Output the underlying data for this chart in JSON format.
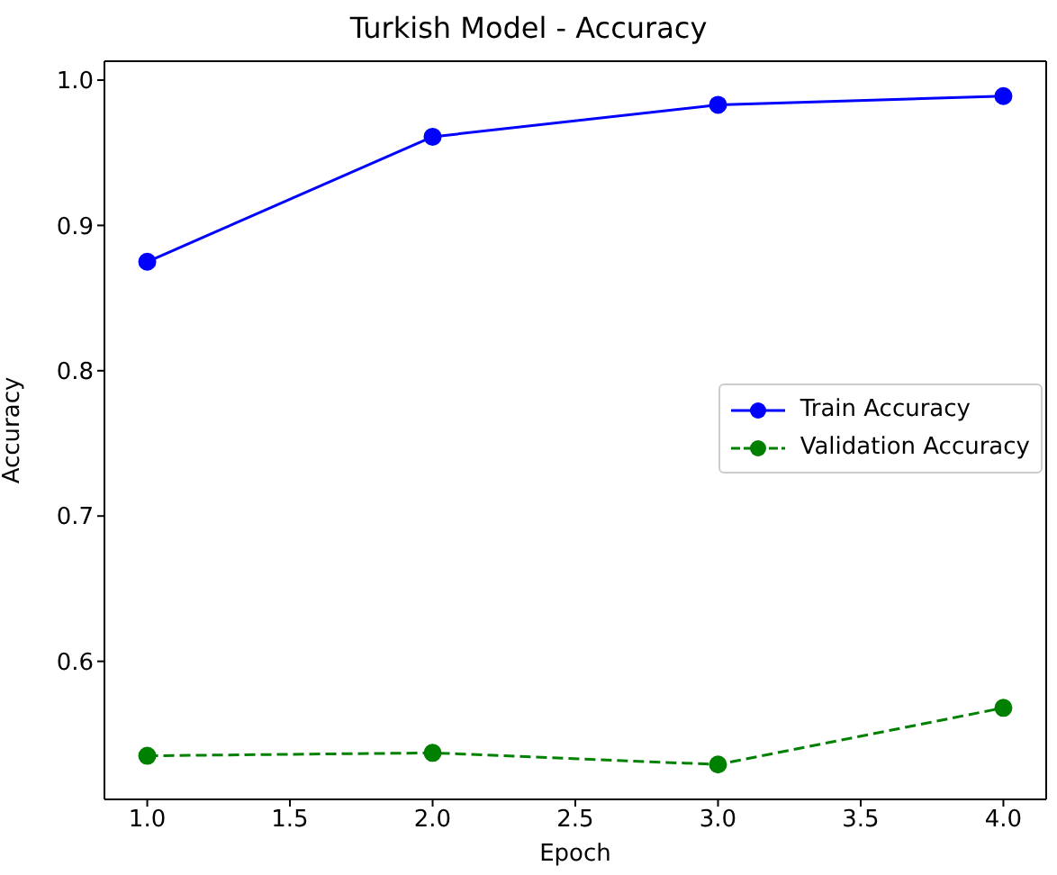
{
  "chart_data": {
    "type": "line",
    "title": "Turkish Model - Accuracy",
    "xlabel": "Epoch",
    "ylabel": "Accuracy",
    "x": [
      1,
      2,
      3,
      4
    ],
    "series": [
      {
        "name": "Train Accuracy",
        "color": "#0000ff",
        "values": [
          0.875,
          0.961,
          0.983,
          0.989
        ],
        "line_style": "solid"
      },
      {
        "name": "Validation Accuracy",
        "color": "#008000",
        "values": [
          0.535,
          0.537,
          0.529,
          0.568
        ],
        "line_style": "dashed"
      }
    ],
    "xlim": [
      0.85,
      4.15
    ],
    "xticks": [
      {
        "value": 1,
        "label": "1.0"
      },
      {
        "value": 1.5,
        "label": "1.5"
      },
      {
        "value": 2,
        "label": "2.0"
      },
      {
        "value": 2.5,
        "label": "2.5"
      },
      {
        "value": 3,
        "label": "3.0"
      },
      {
        "value": 3.5,
        "label": "3.5"
      },
      {
        "value": 4,
        "label": "4.0"
      }
    ],
    "ylim": [
      0.505,
      1.013
    ],
    "yticks": [
      {
        "value": 0.6,
        "label": "0.6"
      },
      {
        "value": 0.7,
        "label": "0.7"
      },
      {
        "value": 0.8,
        "label": "0.8"
      },
      {
        "value": 0.9,
        "label": "0.9"
      },
      {
        "value": 1,
        "label": "1.0"
      }
    ],
    "marker": "circle",
    "legend": "right",
    "grid": false
  }
}
